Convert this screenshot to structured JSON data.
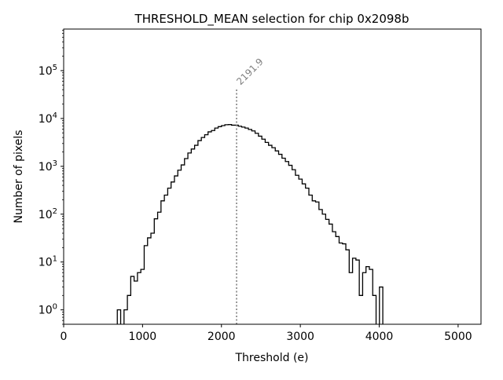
{
  "chart_data": {
    "type": "histogram",
    "title": "THRESHOLD_MEAN selection for chip 0x2098b",
    "xlabel": "Threshold (e)",
    "ylabel": "Number of pixels",
    "xlim": [
      0,
      5290
    ],
    "ylim": [
      0.5,
      740000
    ],
    "yscale": "log",
    "grid": false,
    "x_ticks": [
      0,
      1000,
      2000,
      3000,
      4000,
      5000
    ],
    "x_tick_labels": [
      "0",
      "1000",
      "2000",
      "3000",
      "4000",
      "5000"
    ],
    "y_ticks": [
      1,
      10,
      100,
      1000,
      10000,
      100000
    ],
    "y_tick_labels": [
      {
        "base": "10",
        "exp": "0"
      },
      {
        "base": "10",
        "exp": "1"
      },
      {
        "base": "10",
        "exp": "2"
      },
      {
        "base": "10",
        "exp": "3"
      },
      {
        "base": "10",
        "exp": "4"
      },
      {
        "base": "10",
        "exp": "5"
      }
    ],
    "bin_start": 680,
    "bin_width": 42.6,
    "counts": [
      1,
      0,
      1,
      2,
      5,
      4,
      6,
      7,
      22,
      32,
      40,
      80,
      110,
      190,
      250,
      350,
      470,
      630,
      830,
      1070,
      1450,
      1900,
      2300,
      2750,
      3450,
      4000,
      4570,
      5250,
      5600,
      6300,
      6750,
      7100,
      7400,
      7450,
      7250,
      7250,
      6900,
      6600,
      6300,
      5900,
      5500,
      4900,
      4270,
      3700,
      3160,
      2750,
      2450,
      2100,
      1780,
      1480,
      1260,
      1050,
      850,
      650,
      540,
      430,
      350,
      250,
      190,
      180,
      125,
      100,
      78,
      62,
      43,
      34,
      25,
      24,
      18,
      6,
      12,
      11,
      2,
      6,
      8,
      7,
      2,
      0,
      3
    ],
    "marker": {
      "value": 2191.9,
      "label": "2191.9",
      "top": 42000,
      "color": "#808080"
    },
    "line_color": "#000000"
  }
}
